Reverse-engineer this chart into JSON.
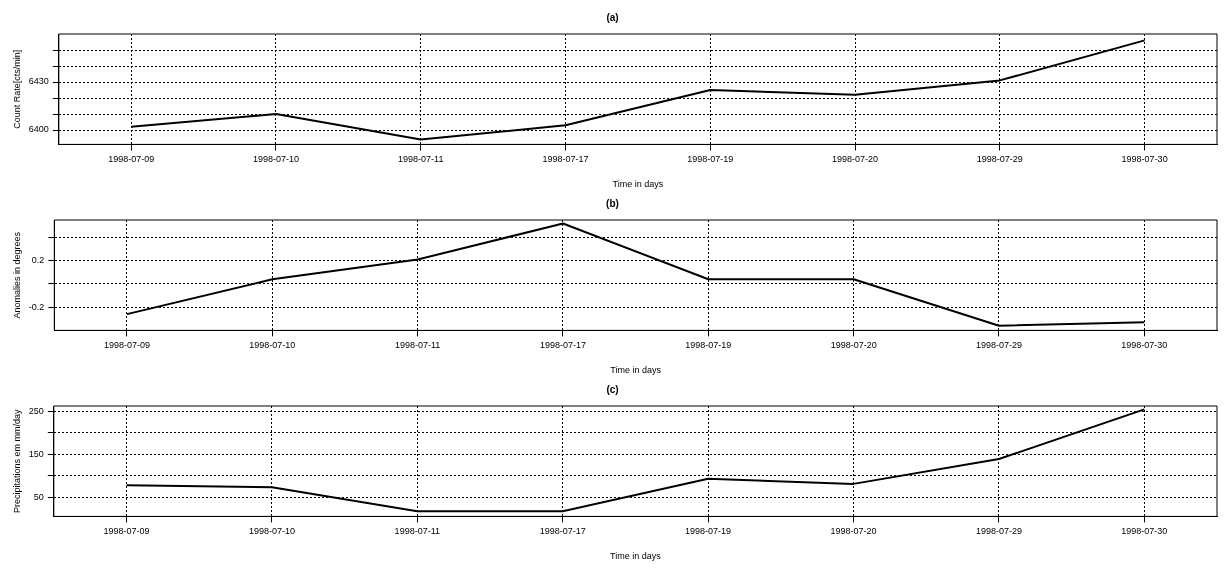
{
  "chart_data": [
    {
      "type": "line",
      "title": "(a)",
      "xlabel": "Time in days",
      "ylabel": "Count Rate[cts/min]",
      "categories": [
        "1998-07-09",
        "1998-07-10",
        "1998-07-11",
        "1998-07-17",
        "1998-07-19",
        "1998-07-20",
        "1998-07-29",
        "1998-07-30"
      ],
      "series": [
        {
          "color": "#000000",
          "values": [
            6402,
            6410,
            6394,
            6403,
            6425,
            6422,
            6431,
            6456
          ]
        }
      ],
      "ylim": [
        6391,
        6460
      ],
      "yticks": [
        6400,
        {
          "value": 6410,
          "label": null
        },
        {
          "value": 6420,
          "label": null
        },
        6430,
        {
          "value": 6440,
          "label": null
        },
        {
          "value": 6450,
          "label": null
        }
      ],
      "grid": true,
      "line_style": "solid"
    },
    {
      "type": "line",
      "title": "(b)",
      "xlabel": "Time in days",
      "ylabel": "Anomalies in degrees",
      "categories": [
        "1998-07-09",
        "1998-07-10",
        "1998-07-11",
        "1998-07-17",
        "1998-07-19",
        "1998-07-20",
        "1998-07-29",
        "1998-07-30"
      ],
      "series": [
        {
          "color": "#000000",
          "values": [
            -0.26,
            0.04,
            0.21,
            0.52,
            0.04,
            0.04,
            -0.36,
            -0.33
          ]
        }
      ],
      "ylim": [
        -0.4,
        0.55
      ],
      "yticks": [
        -0.2,
        {
          "value": 0,
          "label": null
        },
        0.2,
        {
          "value": 0.4,
          "label": null
        }
      ],
      "grid": true,
      "line_style": "solid"
    },
    {
      "type": "line",
      "title": "(c)",
      "xlabel": "Time in days",
      "ylabel": "Precipitations em mm/day",
      "categories": [
        "1998-07-09",
        "1998-07-10",
        "1998-07-11",
        "1998-07-17",
        "1998-07-19",
        "1998-07-20",
        "1998-07-29",
        "1998-07-30"
      ],
      "series": [
        {
          "color": "#000000",
          "values": [
            78,
            73,
            17,
            17,
            93,
            81,
            139,
            255
          ]
        }
      ],
      "ylim": [
        5,
        263
      ],
      "yticks": [
        50,
        {
          "value": 100,
          "label": null
        },
        150,
        {
          "value": 200,
          "label": null
        },
        250
      ],
      "grid": true,
      "line_style": "solid"
    }
  ]
}
